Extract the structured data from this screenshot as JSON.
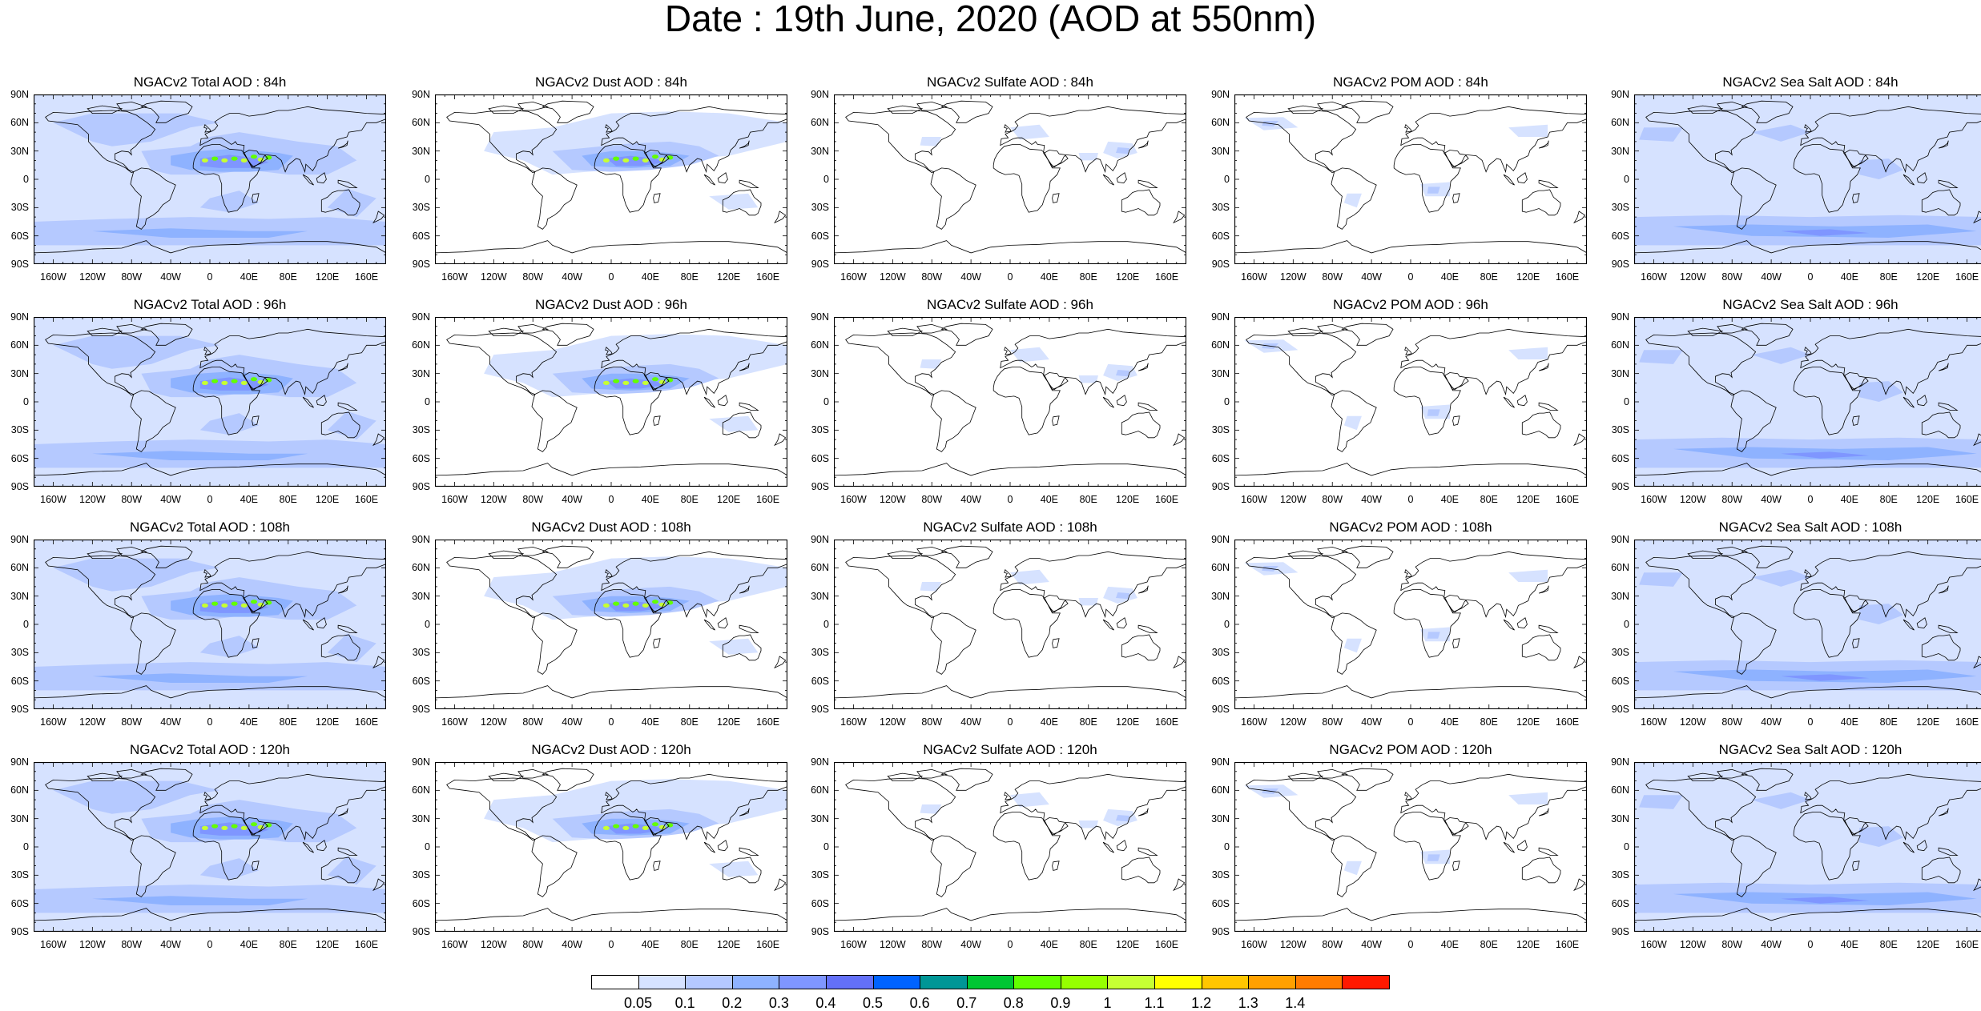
{
  "title": "Date : 19th June, 2020 (AOD at 550nm)",
  "lat_ticks": [
    "90N",
    "60N",
    "30N",
    "0",
    "30S",
    "60S",
    "90S"
  ],
  "lon_ticks": [
    "160W",
    "120W",
    "80W",
    "40W",
    "0",
    "40E",
    "80E",
    "120E",
    "160E"
  ],
  "species": [
    "Total",
    "Dust",
    "Sulfate",
    "POM",
    "Sea Salt"
  ],
  "panels": [
    {
      "title": "NGACv2 Total AOD : 84h",
      "species": "Total",
      "hour": 84
    },
    {
      "title": "NGACv2 Dust AOD : 84h",
      "species": "Dust",
      "hour": 84
    },
    {
      "title": "NGACv2 Sulfate AOD : 84h",
      "species": "Sulfate",
      "hour": 84
    },
    {
      "title": "NGACv2 POM AOD : 84h",
      "species": "POM",
      "hour": 84
    },
    {
      "title": "NGACv2 Sea Salt AOD : 84h",
      "species": "Sea Salt",
      "hour": 84
    },
    {
      "title": "NGACv2 Total AOD : 96h",
      "species": "Total",
      "hour": 96
    },
    {
      "title": "NGACv2 Dust AOD : 96h",
      "species": "Dust",
      "hour": 96
    },
    {
      "title": "NGACv2 Sulfate AOD : 96h",
      "species": "Sulfate",
      "hour": 96
    },
    {
      "title": "NGACv2 POM AOD : 96h",
      "species": "POM",
      "hour": 96
    },
    {
      "title": "NGACv2 Sea Salt AOD : 96h",
      "species": "Sea Salt",
      "hour": 96
    },
    {
      "title": "NGACv2 Total AOD : 108h",
      "species": "Total",
      "hour": 108
    },
    {
      "title": "NGACv2 Dust AOD : 108h",
      "species": "Dust",
      "hour": 108
    },
    {
      "title": "NGACv2 Sulfate AOD : 108h",
      "species": "Sulfate",
      "hour": 108
    },
    {
      "title": "NGACv2 POM AOD : 108h",
      "species": "POM",
      "hour": 108
    },
    {
      "title": "NGACv2 Sea Salt AOD : 108h",
      "species": "Sea Salt",
      "hour": 108
    },
    {
      "title": "NGACv2 Total AOD : 120h",
      "species": "Total",
      "hour": 120
    },
    {
      "title": "NGACv2 Dust AOD : 120h",
      "species": "Dust",
      "hour": 120
    },
    {
      "title": "NGACv2 Sulfate AOD : 120h",
      "species": "Sulfate",
      "hour": 120
    },
    {
      "title": "NGACv2 POM AOD : 120h",
      "species": "POM",
      "hour": 120
    },
    {
      "title": "NGACv2 Sea Salt  AOD : 120h",
      "species": "Sea Salt",
      "hour": 120
    }
  ],
  "colorbar": {
    "labels": [
      "0.05",
      "0.1",
      "0.2",
      "0.3",
      "0.4",
      "0.5",
      "0.6",
      "0.7",
      "0.8",
      "0.9",
      "1",
      "1.1",
      "1.2",
      "1.3",
      "1.4"
    ],
    "colors": [
      "#ffffff",
      "#d6e2ff",
      "#b5c9ff",
      "#8eb2ff",
      "#7f96ff",
      "#6370f8",
      "#0063ff",
      "#009696",
      "#00c633",
      "#63ff00",
      "#96ff00",
      "#c6ff33",
      "#ffff00",
      "#ffc600",
      "#ffa000",
      "#ff7c00",
      "#ff1900"
    ]
  },
  "map_colors": {
    "ocean_base": "#d6e2ff",
    "light": "#b5c9ff",
    "medium": "#8eb2ff",
    "dark": "#7f96ff",
    "green": "#63ff00",
    "yellow": "#c6ff33",
    "coast": "#000000"
  }
}
